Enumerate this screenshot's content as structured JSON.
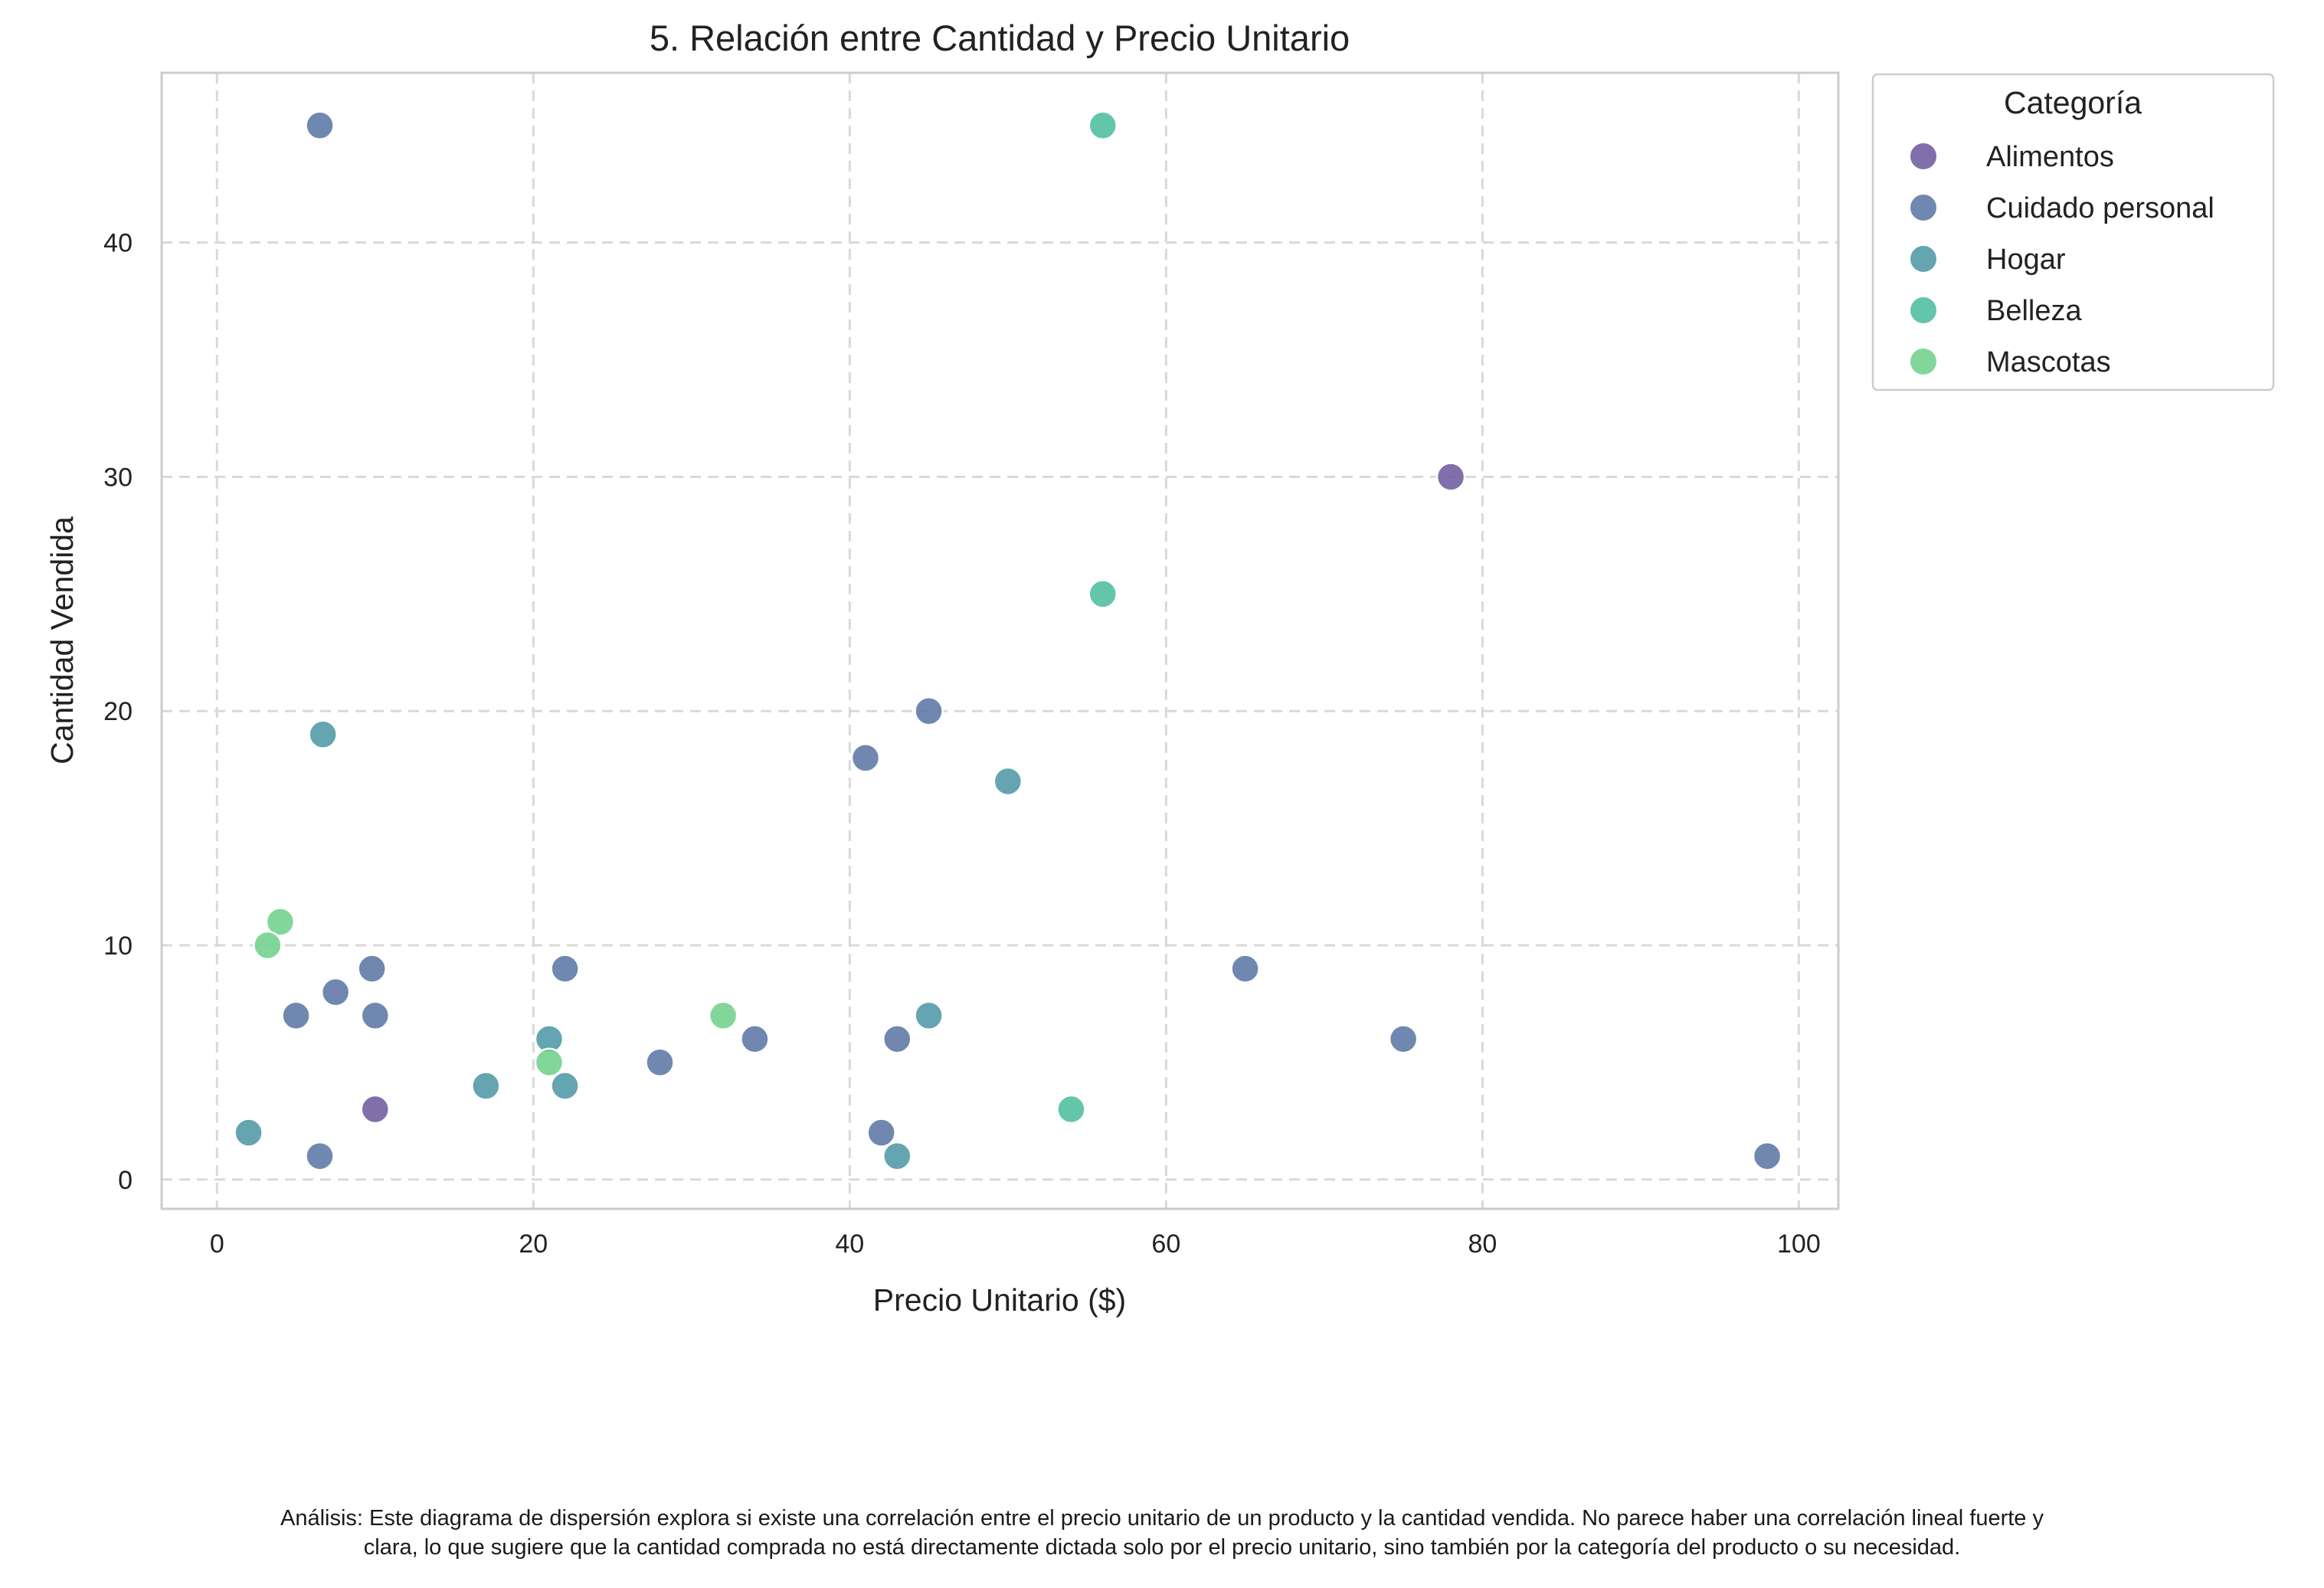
{
  "chart_data": {
    "type": "scatter",
    "title": "5. Relación entre Cantidad y Precio Unitario",
    "xlabel": "Precio Unitario ($)",
    "ylabel": "Cantidad Vendida",
    "xlim": [
      -3.5,
      102.5
    ],
    "ylim": [
      -1.25,
      47.25
    ],
    "xticks": [
      "0",
      "20",
      "40",
      "60",
      "80",
      "100"
    ],
    "yticks": [
      "0",
      "10",
      "20",
      "30",
      "40"
    ],
    "grid": true,
    "legend_title": "Categoría",
    "legend_position": "outside-top-right",
    "series": [
      {
        "name": "Alimentos",
        "color": "#6e5b9f",
        "points": [
          [
            78,
            30
          ],
          [
            10,
            3
          ]
        ]
      },
      {
        "name": "Cuidado personal",
        "color": "#5c77a4",
        "points": [
          [
            6.5,
            45
          ],
          [
            45,
            20
          ],
          [
            41,
            18
          ],
          [
            65,
            9
          ],
          [
            9.8,
            9
          ],
          [
            22,
            9
          ],
          [
            7.5,
            8
          ],
          [
            5,
            7
          ],
          [
            10,
            7
          ],
          [
            75,
            6
          ],
          [
            34,
            6
          ],
          [
            43,
            6
          ],
          [
            28,
            5
          ],
          [
            42,
            2
          ],
          [
            6.5,
            1
          ],
          [
            98,
            1
          ]
        ]
      },
      {
        "name": "Hogar",
        "color": "#4f98a6",
        "points": [
          [
            6.7,
            19
          ],
          [
            50,
            17
          ],
          [
            45,
            7
          ],
          [
            21,
            6
          ],
          [
            17,
            4
          ],
          [
            22,
            4
          ],
          [
            2,
            2
          ],
          [
            43,
            1
          ]
        ]
      },
      {
        "name": "Belleza",
        "color": "#4dbd9e",
        "points": [
          [
            56,
            45
          ],
          [
            56,
            25
          ],
          [
            54,
            3
          ]
        ]
      },
      {
        "name": "Mascotas",
        "color": "#72d08b",
        "points": [
          [
            4,
            11
          ],
          [
            3.2,
            10
          ],
          [
            32,
            7
          ],
          [
            21,
            5
          ]
        ]
      }
    ]
  },
  "caption": {
    "line1": "Análisis: Este diagrama de dispersión explora si existe una correlación entre el precio unitario de un producto y la cantidad vendida. No parece haber una correlación lineal fuerte y",
    "line2": "clara, lo que sugiere que la cantidad comprada no está directamente dictada solo por el precio unitario, sino también por la categoría del producto o su necesidad."
  }
}
